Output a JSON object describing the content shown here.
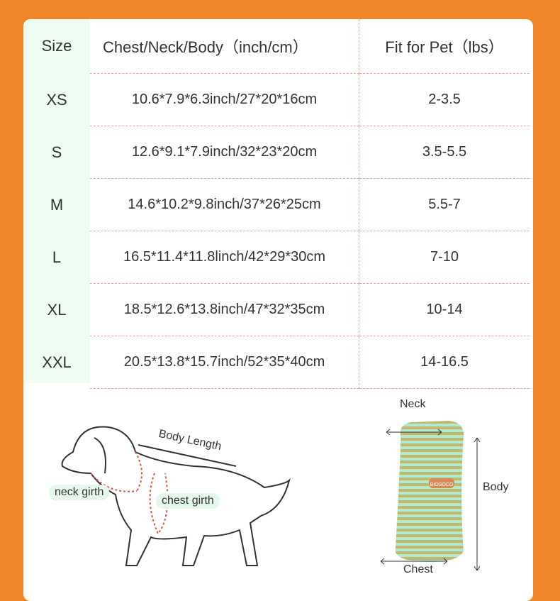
{
  "table": {
    "headers": [
      "Size",
      "Chest/Neck/Body（inch/cm）",
      "Fit for Pet（lbs）"
    ],
    "rows": [
      [
        "XS",
        "10.6*7.9*6.3inch/27*20*16cm",
        "2-3.5"
      ],
      [
        "S",
        "12.6*9.1*7.9inch/32*23*20cm",
        "3.5-5.5"
      ],
      [
        "M",
        "14.6*10.2*9.8inch/37*26*25cm",
        "5.5-7"
      ],
      [
        "L",
        "16.5*11.4*11.8linch/42*29*30cm",
        "7-10"
      ],
      [
        "XL",
        "18.5*12.6*13.8inch/47*32*35cm",
        "10-14"
      ],
      [
        "XXL",
        "20.5*13.8*15.7inch/52*35*40cm",
        "14-16.5"
      ]
    ]
  },
  "dog": {
    "body_length": "Body Length",
    "neck_girth": "neck girth",
    "chest_girth": "chest girth"
  },
  "garment": {
    "neck": "Neck",
    "body": "Body",
    "chest": "Chest",
    "tag": "BIOSOCO"
  },
  "colors": {
    "background": "#f0862a",
    "size_column": "#eefcf3",
    "divider": "#e6a4a0"
  }
}
